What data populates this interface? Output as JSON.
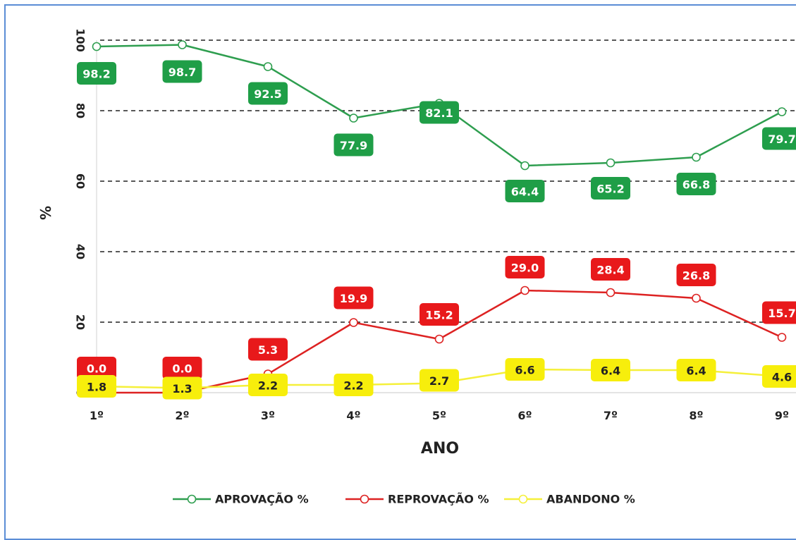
{
  "chart_data": {
    "type": "line",
    "categories": [
      "1º",
      "2º",
      "3º",
      "4º",
      "5º",
      "6º",
      "7º",
      "8º",
      "9º"
    ],
    "xlabel": "ANO",
    "ylabel": "%",
    "ylim": [
      0,
      100
    ],
    "yticks": [
      0,
      20,
      40,
      60,
      80,
      100
    ],
    "grid": "horizontal dashed",
    "legend": "bottom",
    "series": [
      {
        "name": "APROVAÇÃO %",
        "color": "#2e9e4f",
        "label_bg": "#1f9e47",
        "label_color": "#ffffff",
        "values": [
          98.2,
          98.7,
          92.5,
          77.9,
          82.1,
          64.4,
          65.2,
          66.8,
          79.7
        ],
        "labels": [
          "98.2",
          "98.7",
          "92.5",
          "77.9",
          "82.1",
          "64.4",
          "65.2",
          "66.8",
          "79.7"
        ]
      },
      {
        "name": "REPROVAÇÃO %",
        "color": "#dd2222",
        "label_bg": "#e8191b",
        "label_color": "#ffffff",
        "values": [
          0.0,
          0.0,
          5.3,
          19.9,
          15.2,
          29.0,
          28.4,
          26.8,
          15.7
        ],
        "labels": [
          "0.0",
          "0.0",
          "5.3",
          "19.9",
          "15.2",
          "29.0",
          "28.4",
          "26.8",
          "15.7"
        ]
      },
      {
        "name": "ABANDONO %",
        "color": "#f5f03a",
        "label_bg": "#f7ee0c",
        "label_color": "#222222",
        "values": [
          1.8,
          1.3,
          2.2,
          2.2,
          2.7,
          6.6,
          6.4,
          6.4,
          4.6
        ],
        "labels": [
          "1.8",
          "1.3",
          "2.2",
          "2.2",
          "2.7",
          "6.6",
          "6.4",
          "6.4",
          "4.6"
        ]
      }
    ]
  }
}
